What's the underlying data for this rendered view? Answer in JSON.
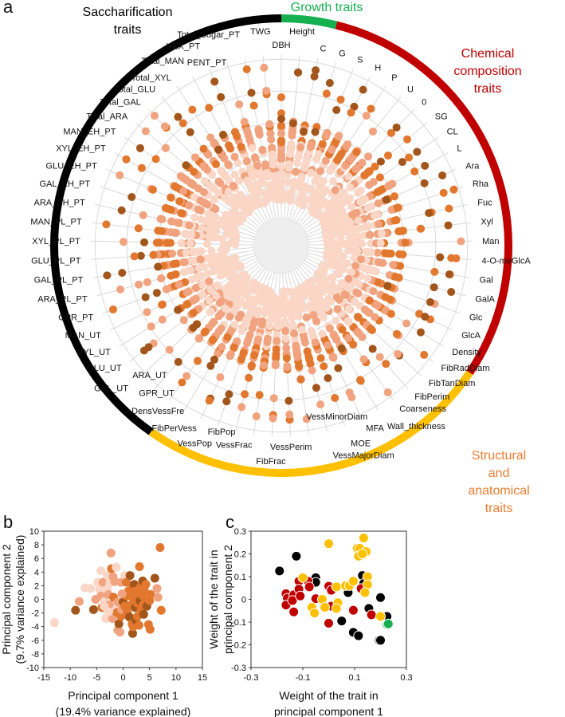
{
  "panel_letters": {
    "a": "a",
    "b": "b",
    "c": "c"
  },
  "colors": {
    "growth": "#17b050",
    "chemical": "#c00000",
    "structural": "#ffc000",
    "structural_text": "#ee7d31",
    "saccharification": "#000000",
    "shades": [
      "#f9d6c6",
      "#f0a37e",
      "#e2772e",
      "#a3561b"
    ]
  },
  "chart_data": [
    {
      "type": "scatter",
      "subtype": "radial dot plot",
      "panel": "a",
      "groups": [
        {
          "name_lines": [
            "Saccharification",
            "traits"
          ],
          "color": "#000000",
          "span_deg": [
            215,
            360
          ]
        },
        {
          "name_lines": [
            "Growth traits"
          ],
          "color": "#17b050",
          "span_deg": [
            0,
            14
          ]
        },
        {
          "name_lines": [
            "Chemical",
            "composition",
            "traits"
          ],
          "color": "#c00000",
          "span_deg": [
            14,
            124
          ]
        },
        {
          "name_lines": [
            "Structural",
            "and",
            "anatomical",
            "traits"
          ],
          "color": "#ffc000",
          "span_deg": [
            124,
            215
          ]
        }
      ],
      "categories": [
        "DBH",
        "Height",
        "C",
        "G",
        "S",
        "H",
        "P",
        "U",
        "0",
        "SG",
        "CL",
        "L",
        "Ara",
        "Rha",
        "Fuc",
        "Xyl",
        "Man",
        "4-O-meGlcA",
        "Gal",
        "GalA",
        "Glc",
        "GlcA",
        "Density",
        "FibRadDiam",
        "FibTanDiam",
        "FibPerim",
        "Coarseness",
        "Wall_thickness",
        "MFA",
        "MOE",
        "VessMajorDiam",
        "VessMinorDiam",
        "VessPerim",
        "FibFrac",
        "VessFrac",
        "FibPop",
        "VessPop",
        "FibPerVess",
        "DensVessFre",
        "GPR_UT",
        "ARA_UT",
        "GAL_UT",
        "GLU_UT",
        "XYL_UT",
        "MAN_UT",
        "GPR_PT",
        "ARA_PL_PT",
        "GAL_PL_PT",
        "GLU_PL_PT",
        "XYL_PL_PT",
        "MAN_PL_PT",
        "ARA_EH_PT",
        "GAL_EH_PT",
        "GLU_EH_PT",
        "XYL_EH_PT",
        "MAN_EH_PT",
        "Total_ARA",
        "Total_GAL",
        "Total_GLU",
        "Total_XYL",
        "Total_MAN",
        "HEX_PT",
        "PENT_PT",
        "Total_Sugar_PT",
        "TWG"
      ]
    },
    {
      "type": "scatter",
      "panel": "b",
      "xlabel": "Principal component 1",
      "xlabel2": "(19.4% variance explained)",
      "ylabel": "Principal component 2",
      "ylabel2": "(9.7% variance explained)",
      "xlim": [
        -15,
        15
      ],
      "ylim": [
        -10,
        10
      ],
      "xticks": [
        "-15",
        "-10",
        "-5",
        "0",
        "5",
        "10",
        "15"
      ],
      "yticks": [
        "10",
        "8",
        "6",
        "4",
        "2",
        "0",
        "-2",
        "-4",
        "-6",
        "-8",
        "-10"
      ],
      "points": [
        [
          -13,
          -3.4,
          0
        ],
        [
          -9,
          -1.6,
          3
        ],
        [
          -8.3,
          -0.3,
          1
        ],
        [
          -7.2,
          1.7,
          0
        ],
        [
          -6.2,
          1.6,
          0
        ],
        [
          -5.6,
          -1.5,
          3
        ],
        [
          -5.2,
          0,
          1
        ],
        [
          -4.8,
          2.5,
          0
        ],
        [
          -4.5,
          1.5,
          0
        ],
        [
          -4.2,
          4.2,
          0
        ],
        [
          -4.2,
          0.5,
          1
        ],
        [
          -4,
          -1.2,
          2
        ],
        [
          -3.8,
          2.5,
          1
        ],
        [
          -3.5,
          -0.3,
          0
        ],
        [
          -3.3,
          -2.8,
          0
        ],
        [
          -3,
          3.5,
          0
        ],
        [
          -3,
          1.5,
          0
        ],
        [
          -2.9,
          -1.6,
          0
        ],
        [
          -2.8,
          0.7,
          1
        ],
        [
          -2.6,
          -0.8,
          1
        ],
        [
          -2.5,
          2.4,
          0
        ],
        [
          -2.3,
          6.8,
          1
        ],
        [
          -2.2,
          4.5,
          2
        ],
        [
          -2,
          -2.8,
          1
        ],
        [
          -1.9,
          3.3,
          1
        ],
        [
          -1.8,
          0.3,
          2
        ],
        [
          -1.6,
          2.6,
          1
        ],
        [
          -1.5,
          -1.7,
          2
        ],
        [
          -1.3,
          4.7,
          0
        ],
        [
          -1.3,
          -1.5,
          0
        ],
        [
          -1.1,
          -1.9,
          2
        ],
        [
          -1,
          -4.5,
          1
        ],
        [
          -1,
          -0.4,
          1
        ],
        [
          -0.8,
          -3.6,
          3
        ],
        [
          -0.6,
          -4.8,
          1
        ],
        [
          -0.4,
          -2.5,
          2
        ],
        [
          -0.4,
          2.5,
          1
        ],
        [
          -0.3,
          -1.5,
          1
        ],
        [
          0,
          -0.4,
          3
        ],
        [
          0.3,
          -1,
          2
        ],
        [
          0.3,
          3.5,
          0
        ],
        [
          0.6,
          2.5,
          2
        ],
        [
          0.7,
          0.5,
          2
        ],
        [
          0.8,
          -1.8,
          2
        ],
        [
          1,
          1.2,
          2
        ],
        [
          1.2,
          -2.6,
          3
        ],
        [
          1.3,
          3.5,
          3
        ],
        [
          1.4,
          0.6,
          2
        ],
        [
          1.5,
          -0.8,
          2
        ],
        [
          1.6,
          1.5,
          2
        ],
        [
          1.7,
          -3.6,
          2
        ],
        [
          1.8,
          -5,
          3
        ],
        [
          1.9,
          -4,
          2
        ],
        [
          2,
          0,
          2
        ],
        [
          2.1,
          2.2,
          3
        ],
        [
          2.2,
          1.2,
          2
        ],
        [
          2.3,
          -1.2,
          3
        ],
        [
          2.4,
          -3,
          3
        ],
        [
          2.6,
          -0.5,
          2
        ],
        [
          2.7,
          -2.5,
          2
        ],
        [
          2.8,
          0.8,
          2
        ],
        [
          3,
          -3.8,
          2
        ],
        [
          3.1,
          4.8,
          2
        ],
        [
          3.2,
          -0.2,
          3
        ],
        [
          3.3,
          1.8,
          2
        ],
        [
          3.4,
          -1.5,
          2
        ],
        [
          3.6,
          0.6,
          2
        ],
        [
          3.7,
          2.7,
          3
        ],
        [
          3.8,
          -0.8,
          2
        ],
        [
          3.9,
          -2.2,
          3
        ],
        [
          4,
          1.3,
          2
        ],
        [
          4.2,
          -0.3,
          2
        ],
        [
          4.3,
          2.2,
          2
        ],
        [
          4.5,
          -1,
          3
        ],
        [
          4.8,
          -3.7,
          2
        ],
        [
          5,
          -0.2,
          2
        ],
        [
          5.1,
          -4.4,
          2
        ],
        [
          5.2,
          0.7,
          2
        ],
        [
          6,
          3.1,
          3
        ],
        [
          6.4,
          1.6,
          1
        ],
        [
          6.6,
          0.3,
          1
        ],
        [
          7,
          7.6,
          2
        ],
        [
          7.2,
          -1.6,
          2
        ],
        [
          -3.6,
          -1,
          0
        ],
        [
          -2.7,
          -1.8,
          0
        ],
        [
          -0.2,
          0.8,
          1
        ]
      ]
    },
    {
      "type": "scatter",
      "panel": "c",
      "xlabel": "Weight of the trait in",
      "xlabel2": "principal component 1",
      "ylabel": "Weight of the trait in",
      "ylabel2": "principal component 2",
      "xlim": [
        -0.3,
        0.3
      ],
      "ylim": [
        -0.3,
        0.3
      ],
      "xticks": [
        "-0.3",
        "-0.1",
        "0.1",
        "0.3"
      ],
      "yticks": [
        "0.3",
        "0.2",
        "0.1",
        "0",
        "-0.1",
        "-0.2",
        "-0.3"
      ],
      "series": [
        {
          "name": "Saccharification traits",
          "color": "#000000",
          "points": [
            [
              -0.19,
              0.125
            ],
            [
              -0.125,
              0.19
            ],
            [
              -0.05,
              0.095
            ],
            [
              -0.05,
              0.075
            ],
            [
              0.13,
              0.105
            ],
            [
              0.135,
              0.07
            ],
            [
              0.075,
              0.03
            ],
            [
              0.2,
              0.008
            ],
            [
              0.155,
              -0.04
            ],
            [
              0.225,
              -0.075
            ],
            [
              0.05,
              -0.095
            ],
            [
              0.095,
              -0.145
            ],
            [
              0.115,
              -0.16
            ],
            [
              0.195,
              -0.18
            ],
            [
              0.2,
              -0.18
            ]
          ]
        },
        {
          "name": "Chemical composition traits",
          "color": "#c00000",
          "points": [
            [
              -0.165,
              0.025
            ],
            [
              -0.16,
              0.005
            ],
            [
              -0.165,
              -0.025
            ],
            [
              -0.135,
              0.02
            ],
            [
              -0.14,
              -0.005
            ],
            [
              -0.135,
              -0.055
            ],
            [
              -0.115,
              0.08
            ],
            [
              -0.115,
              0.045
            ],
            [
              -0.11,
              0.015
            ],
            [
              -0.08,
              0.08
            ],
            [
              -0.075,
              0.055
            ],
            [
              -0.05,
              0.003
            ],
            [
              0,
              0.058
            ],
            [
              0.01,
              0.04
            ],
            [
              0.01,
              -0.03
            ],
            [
              0,
              -0.105
            ],
            [
              0.095,
              -0.048
            ],
            [
              0.125,
              0.048
            ],
            [
              0.165,
              -0.068
            ]
          ]
        },
        {
          "name": "Structural and anatomical traits",
          "color": "#ffc000",
          "points": [
            [
              0,
              0.245
            ],
            [
              0.11,
              0.225
            ],
            [
              0.12,
              0.225
            ],
            [
              0.135,
              0.27
            ],
            [
              0.145,
              0.21
            ],
            [
              0.115,
              0.19
            ],
            [
              0.13,
              0.2
            ],
            [
              -0.1,
              0.095
            ],
            [
              0.03,
              0.055
            ],
            [
              0.065,
              0.06
            ],
            [
              0.08,
              0.06
            ],
            [
              0.095,
              0.08
            ],
            [
              0.15,
              0.1
            ],
            [
              0.15,
              0.065
            ],
            [
              0.14,
              0.03
            ],
            [
              -0.025,
              0
            ],
            [
              -0.065,
              -0.035
            ],
            [
              -0.055,
              -0.06
            ],
            [
              -0.015,
              -0.035
            ],
            [
              0.035,
              -0.015
            ],
            [
              0.03,
              -0.04
            ],
            [
              0.2,
              -0.075
            ]
          ]
        },
        {
          "name": "Growth traits",
          "color": "#17b050",
          "points": [
            [
              0.225,
              -0.11
            ],
            [
              0.23,
              -0.108
            ]
          ]
        }
      ]
    }
  ]
}
